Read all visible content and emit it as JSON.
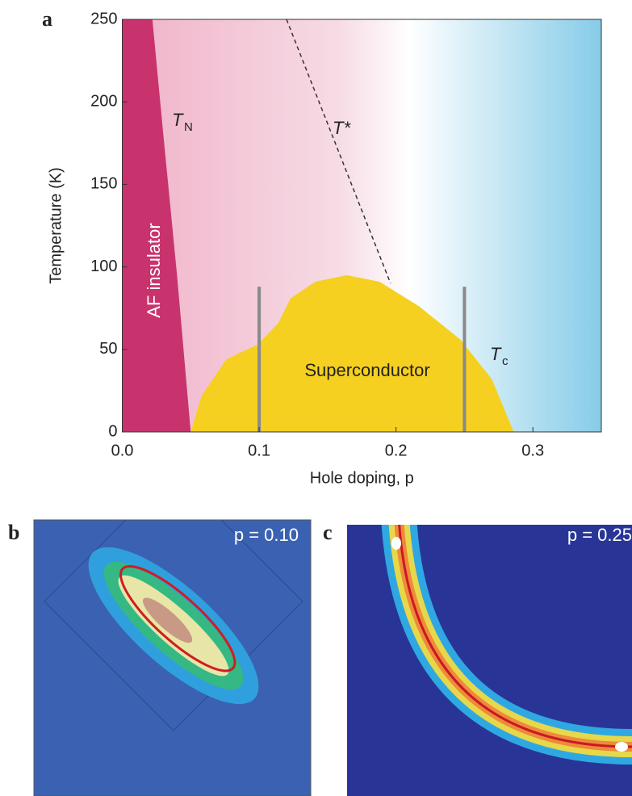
{
  "chart_data": {
    "type": "phase-diagram",
    "panel_label": "a",
    "xlabel": "Hole doping, p",
    "ylabel": "Temperature (K)",
    "xlim": [
      0,
      0.35
    ],
    "ylim": [
      0,
      250
    ],
    "xticks": [
      {
        "value": 0,
        "label": "0.0"
      },
      0.1,
      0.2,
      0.3
    ],
    "yticks": [
      0,
      50,
      100,
      150,
      200,
      250
    ],
    "regions": [
      {
        "label": "AF insulator",
        "color": "#c8336e",
        "x": [
          0.022,
          0.03,
          0.04,
          0.05
        ],
        "y": [
          250,
          180,
          95,
          0
        ]
      },
      {
        "label": "Superconductor",
        "color": "#f5d020",
        "x": [
          0.05,
          0.058,
          0.076,
          0.099,
          0.114,
          0.123,
          0.141,
          0.164,
          0.188,
          0.217,
          0.247,
          0.27,
          0.286
        ],
        "y": [
          0,
          22,
          44,
          53,
          66,
          81,
          91,
          95,
          91,
          76,
          56,
          32,
          0
        ]
      }
    ],
    "pseudogap_line": {
      "label": "T*",
      "color": "#333333",
      "x": [
        0.12,
        0.196
      ],
      "y": [
        250,
        90
      ]
    },
    "annotations": [
      {
        "text": "T",
        "sub": "N"
      },
      {
        "text": "T",
        "sub": "c"
      }
    ],
    "markers": {
      "color": "#8a8a8a",
      "x": [
        0.1,
        0.25
      ],
      "top": [
        88,
        88
      ]
    }
  },
  "panels": [
    {
      "label": "b",
      "annotation": "p = 0.10"
    },
    {
      "label": "c",
      "annotation": "p = 0.25"
    }
  ]
}
